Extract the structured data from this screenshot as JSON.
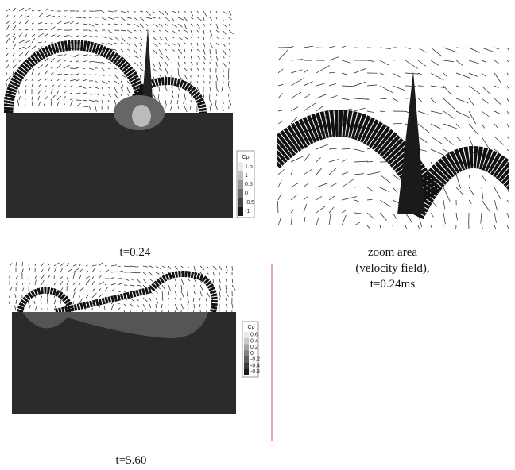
{
  "panel_1": {
    "caption": "t=0.24",
    "legend": {
      "title": "Cp",
      "labels": [
        "1.5",
        "1",
        "0.5",
        "0",
        "-0.5",
        "-1"
      ]
    }
  },
  "panel_zoom": {
    "caption_lines": [
      "zoom area",
      "(velocity field),",
      "t=0.24ms"
    ]
  },
  "panel_2": {
    "caption": "t=5.60",
    "legend": {
      "title": "Cp",
      "labels": [
        "0.6",
        "0.4",
        "0.2",
        "0",
        "-0.2",
        "-0.4",
        "-0.6"
      ]
    }
  }
}
